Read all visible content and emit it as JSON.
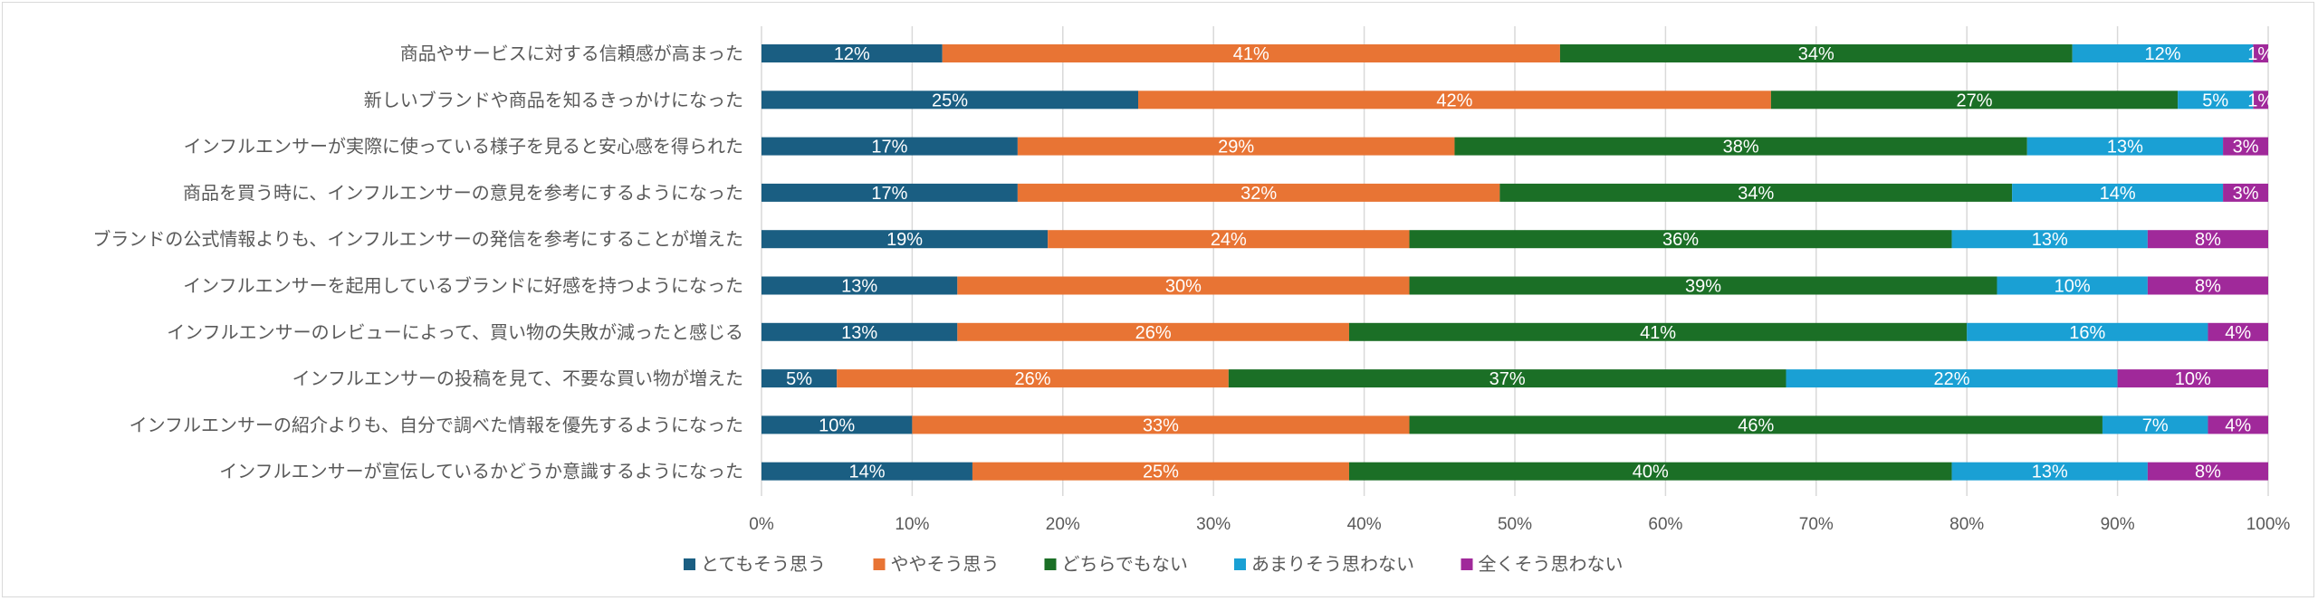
{
  "chart_data": {
    "type": "bar",
    "orientation": "horizontal",
    "stacked": true,
    "percent": true,
    "title": "",
    "xlabel": "",
    "ylabel": "",
    "xlim": [
      0,
      100
    ],
    "x_ticks": [
      "0%",
      "10%",
      "20%",
      "30%",
      "40%",
      "50%",
      "60%",
      "70%",
      "80%",
      "90%",
      "100%"
    ],
    "grid": true,
    "legend_position": "bottom",
    "categories": [
      "商品やサービスに対する信頼感が高まった",
      "新しいブランドや商品を知るきっかけになった",
      "インフルエンサーが実際に使っている様子を見ると安心感を得られた",
      "商品を買う時に、インフルエンサーの意見を参考にするようになった",
      "ブランドの公式情報よりも、インフルエンサーの発信を参考にすることが増えた",
      "インフルエンサーを起用しているブランドに好感を持つようになった",
      "インフルエンサーのレビューによって、買い物の失敗が減ったと感じる",
      "インフルエンサーの投稿を見て、不要な買い物が増えた",
      "インフルエンサーの紹介よりも、自分で調べた情報を優先するようになった",
      "インフルエンサーが宣伝しているかどうか意識するようになった"
    ],
    "series": [
      {
        "name": "とてもそう思う",
        "color": "#1a5e82",
        "values": [
          12,
          25,
          17,
          17,
          19,
          13,
          13,
          5,
          10,
          14
        ]
      },
      {
        "name": "ややそう思う",
        "color": "#e87434",
        "values": [
          41,
          42,
          29,
          32,
          24,
          30,
          26,
          26,
          33,
          25
        ]
      },
      {
        "name": "どちらでもない",
        "color": "#1b6f26",
        "values": [
          34,
          27,
          38,
          34,
          36,
          39,
          41,
          37,
          46,
          40
        ]
      },
      {
        "name": "あまりそう思わない",
        "color": "#1aa0d4",
        "values": [
          12,
          5,
          13,
          14,
          13,
          10,
          16,
          22,
          7,
          13
        ]
      },
      {
        "name": "全くそう思わない",
        "color": "#a0299a",
        "values": [
          1,
          1,
          3,
          3,
          8,
          8,
          4,
          10,
          4,
          8
        ]
      }
    ],
    "data_label_suffix": "%"
  }
}
